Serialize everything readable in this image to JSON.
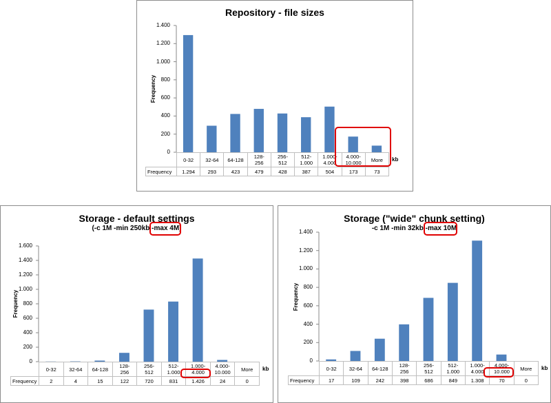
{
  "chart_data": [
    {
      "type": "bar",
      "title": "Repository - file sizes",
      "y_label": "Frequency",
      "x_label": "kb",
      "table_header": "Frequency",
      "categories": [
        "0-32",
        "32-64",
        "64-128",
        "128-256",
        "256-512",
        "512-1.000",
        "1.000-4.000",
        "4.000-10.000",
        "More"
      ],
      "values": [
        1294,
        293,
        423,
        479,
        428,
        387,
        504,
        173,
        73
      ],
      "value_labels": [
        "1.294",
        "293",
        "423",
        "479",
        "428",
        "387",
        "504",
        "173",
        "73"
      ],
      "color": "#4f81bd",
      "ylim": [
        0,
        1400
      ],
      "yticks": [
        0,
        200,
        400,
        600,
        800,
        {
          "value": 1000,
          "label": "1.000"
        },
        {
          "value": 1200,
          "label": "1.200"
        },
        {
          "value": 1400,
          "label": "1.400"
        }
      ],
      "grid": false
    },
    {
      "type": "bar",
      "title": "Storage - default settings",
      "subtitle": "(-c 1M -min 250kb -max 4M)",
      "y_label": "Frequency",
      "x_label": "kb",
      "table_header": "Frequency",
      "categories": [
        "0-32",
        "32-64",
        "64-128",
        "128-256",
        "256-512",
        "512-1.000",
        "1.000-4.000",
        "4.000-10.000",
        "More"
      ],
      "values": [
        2,
        4,
        15,
        122,
        720,
        831,
        1426,
        24,
        0
      ],
      "value_labels": [
        "2",
        "4",
        "15",
        "122",
        "720",
        "831",
        "1.426",
        "24",
        "0"
      ],
      "color": "#4f81bd",
      "ylim": [
        0,
        1600
      ],
      "yticks": [
        0,
        200,
        400,
        600,
        800,
        {
          "value": 1000,
          "label": "1.000"
        },
        {
          "value": 1200,
          "label": "1.200"
        },
        {
          "value": 1400,
          "label": "1.400"
        },
        {
          "value": 1600,
          "label": "1.600"
        }
      ],
      "grid": false
    },
    {
      "type": "bar",
      "title": "Storage (\"wide\" chunk setting)",
      "subtitle": "-c 1M -min 32kb -max 10M",
      "y_label": "Frequency",
      "x_label": "kb",
      "table_header": "Frequency",
      "categories": [
        "0-32",
        "32-64",
        "64-128",
        "128-256",
        "256-512",
        "512-1.000",
        "1.000-4.000",
        "4.000-10.000",
        "More"
      ],
      "values": [
        17,
        109,
        242,
        398,
        686,
        849,
        1308,
        70,
        0
      ],
      "value_labels": [
        "17",
        "109",
        "242",
        "398",
        "686",
        "849",
        "1.308",
        "70",
        "0"
      ],
      "color": "#4f81bd",
      "ylim": [
        0,
        1400
      ],
      "yticks": [
        0,
        200,
        400,
        600,
        800,
        {
          "value": 1000,
          "label": "1.000"
        },
        {
          "value": 1200,
          "label": "1.200"
        },
        {
          "value": 1400,
          "label": "1.400"
        }
      ],
      "grid": false
    }
  ]
}
